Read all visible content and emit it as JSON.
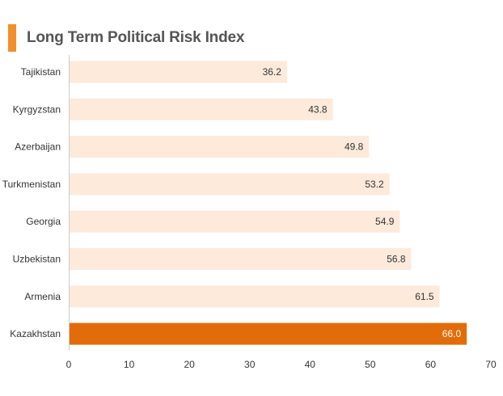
{
  "chart_data": {
    "type": "bar",
    "orientation": "horizontal",
    "title": "Long Term Political Risk Index",
    "categories": [
      "Tajikistan",
      "Kyrgyzstan",
      "Azerbaijan",
      "Turkmenistan",
      "Georgia",
      "Uzbekistan",
      "Armenia",
      "Kazakhstan"
    ],
    "values": [
      36.2,
      43.8,
      49.8,
      53.2,
      54.9,
      56.8,
      61.5,
      66.0
    ],
    "value_labels": [
      "36.2",
      "43.8",
      "49.8",
      "53.2",
      "54.9",
      "56.8",
      "61.5",
      "66.0"
    ],
    "highlight_category": "Kazakhstan",
    "xlim": [
      0,
      70
    ],
    "xticks": [
      0,
      10,
      20,
      30,
      40,
      50,
      60,
      70
    ],
    "xlabel": "",
    "ylabel": "",
    "grid": false,
    "colors": {
      "bar": "#fdeadb",
      "highlight": "#e36c0a",
      "accent": "#f28e2b",
      "title": "#555555",
      "axis": "#cccccc",
      "text": "#333333",
      "highlight_text": "#ffffff"
    }
  }
}
